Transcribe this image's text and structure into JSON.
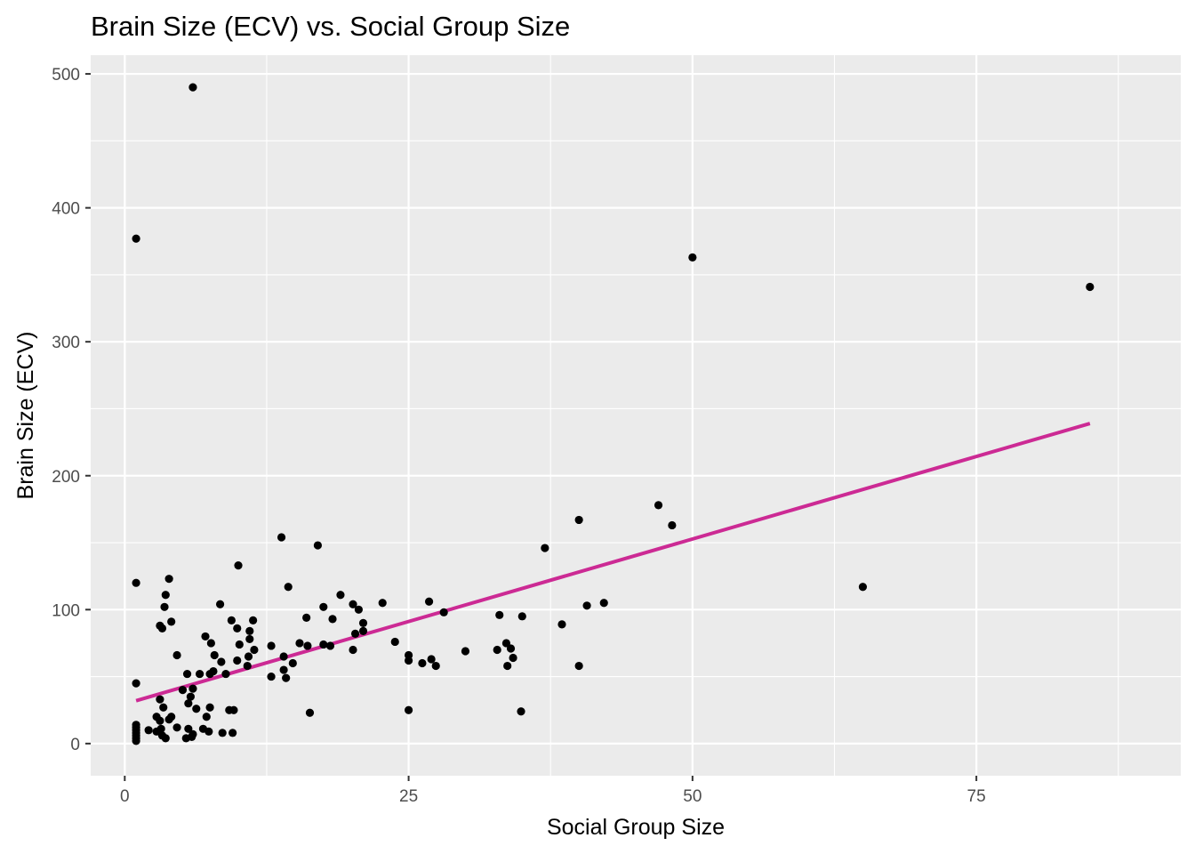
{
  "chart_data": {
    "type": "scatter",
    "title": "Brain Size (ECV) vs. Social Group Size",
    "xlabel": "Social Group Size",
    "ylabel": "Brain Size (ECV)",
    "xlim": [
      -3,
      93
    ],
    "ylim": [
      -24,
      514
    ],
    "x_ticks": [
      0,
      25,
      50,
      75
    ],
    "x_tick_labels": [
      "0",
      "25",
      "50",
      "75"
    ],
    "y_ticks": [
      0,
      100,
      200,
      300,
      400,
      500
    ],
    "y_tick_labels": [
      "0",
      "100",
      "200",
      "300",
      "400",
      "500"
    ],
    "grid": true,
    "panel_background": "#ebebeb",
    "grid_major_color": "#ffffff",
    "point_color": "#000000",
    "trend_color": "#cc2a94",
    "trend_line": {
      "x": [
        1,
        85
      ],
      "y": [
        32,
        239
      ]
    },
    "points": [
      [
        6,
        490
      ],
      [
        1,
        377
      ],
      [
        50,
        363
      ],
      [
        85,
        341
      ],
      [
        65,
        117
      ],
      [
        47,
        178
      ],
      [
        48.2,
        163
      ],
      [
        40,
        167
      ],
      [
        37,
        146
      ],
      [
        42.2,
        105
      ],
      [
        40.7,
        103
      ],
      [
        38.5,
        89
      ],
      [
        40,
        58
      ],
      [
        35,
        95
      ],
      [
        33,
        96
      ],
      [
        34,
        71
      ],
      [
        33.6,
        75
      ],
      [
        32.8,
        70
      ],
      [
        34.2,
        64
      ],
      [
        33.7,
        58
      ],
      [
        34.9,
        24
      ],
      [
        30,
        69
      ],
      [
        28.1,
        98
      ],
      [
        26.8,
        106
      ],
      [
        27.4,
        58
      ],
      [
        27,
        63
      ],
      [
        26.2,
        60
      ],
      [
        25,
        66
      ],
      [
        25,
        62
      ],
      [
        25,
        25
      ],
      [
        23.8,
        76
      ],
      [
        22.7,
        105
      ],
      [
        21,
        90
      ],
      [
        20.6,
        100
      ],
      [
        20.1,
        104
      ],
      [
        21,
        84
      ],
      [
        20.3,
        82
      ],
      [
        20.1,
        70
      ],
      [
        19,
        111
      ],
      [
        18.3,
        93
      ],
      [
        18.1,
        73
      ],
      [
        17.5,
        102
      ],
      [
        17.5,
        74
      ],
      [
        17,
        148
      ],
      [
        16.3,
        23
      ],
      [
        16,
        94
      ],
      [
        16.1,
        73
      ],
      [
        15.4,
        75
      ],
      [
        14.8,
        60
      ],
      [
        14.4,
        117
      ],
      [
        14.2,
        49
      ],
      [
        14,
        65
      ],
      [
        14,
        55
      ],
      [
        13.8,
        154
      ],
      [
        12.9,
        73
      ],
      [
        12.9,
        50
      ],
      [
        11.3,
        92
      ],
      [
        11.4,
        70
      ],
      [
        11,
        84
      ],
      [
        11,
        78
      ],
      [
        10.9,
        65
      ],
      [
        10.8,
        58
      ],
      [
        10,
        133
      ],
      [
        9.9,
        86
      ],
      [
        10.1,
        74
      ],
      [
        9.9,
        62
      ],
      [
        9.4,
        92
      ],
      [
        9.6,
        25
      ],
      [
        9.2,
        25
      ],
      [
        9.5,
        8
      ],
      [
        8.9,
        52
      ],
      [
        8.4,
        104
      ],
      [
        8.5,
        61
      ],
      [
        8.6,
        8
      ],
      [
        7.9,
        66
      ],
      [
        7.6,
        75
      ],
      [
        7.8,
        54
      ],
      [
        7.5,
        52
      ],
      [
        7.1,
        80
      ],
      [
        7.5,
        27
      ],
      [
        7.2,
        20
      ],
      [
        7.4,
        9
      ],
      [
        6.6,
        52
      ],
      [
        6.9,
        11
      ],
      [
        6.3,
        26
      ],
      [
        6,
        41
      ],
      [
        6,
        7
      ],
      [
        5.5,
        52
      ],
      [
        5.8,
        35
      ],
      [
        5.6,
        30
      ],
      [
        5.6,
        11
      ],
      [
        5.4,
        4
      ],
      [
        5.9,
        5
      ],
      [
        5.1,
        40
      ],
      [
        4.6,
        66
      ],
      [
        4.6,
        12
      ],
      [
        4.1,
        91
      ],
      [
        4.1,
        20
      ],
      [
        3.9,
        123
      ],
      [
        3.6,
        111
      ],
      [
        3.5,
        102
      ],
      [
        3.3,
        86
      ],
      [
        3.1,
        88
      ],
      [
        3.4,
        27
      ],
      [
        3.1,
        33
      ],
      [
        3.1,
        17
      ],
      [
        2.8,
        20
      ],
      [
        2.8,
        9
      ],
      [
        3.2,
        11
      ],
      [
        3.3,
        6
      ],
      [
        3.6,
        4
      ],
      [
        3.9,
        18
      ],
      [
        2.1,
        10
      ],
      [
        1,
        120
      ],
      [
        1,
        45
      ],
      [
        1,
        14
      ],
      [
        1,
        12
      ],
      [
        1,
        10
      ],
      [
        1,
        8
      ],
      [
        1,
        6
      ],
      [
        1,
        4
      ],
      [
        1,
        2
      ]
    ]
  }
}
